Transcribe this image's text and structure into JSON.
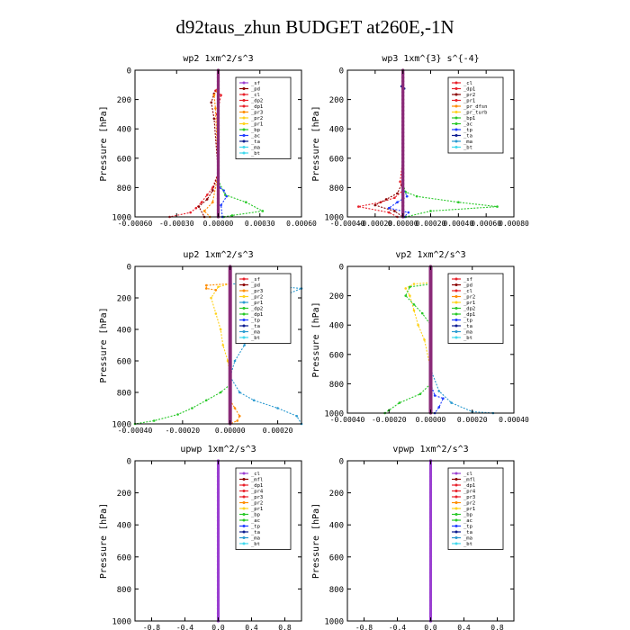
{
  "page_title": "d92taus_zhun  BUDGET at260E,-1N",
  "colors": {
    "purple": "#9a3fd1",
    "darkred": "#8b0000",
    "red": "#e8202a",
    "orange": "#ff8c00",
    "yellow": "#ffd21a",
    "green": "#28c828",
    "blue": "#1e3cff",
    "darkblue": "#0b1b8f",
    "teal": "#2a9ad0",
    "cyan": "#3fd8ec",
    "thick": "#8a2a78"
  },
  "chart_data": [
    {
      "type": "line",
      "title": "wp2  1xm^2/s^3",
      "ylabel": "Pressure [hPa]",
      "xlim": [
        -0.0006,
        0.0006
      ],
      "xticks": [
        -0.0006,
        -0.0003,
        0.0,
        0.0003,
        0.0006
      ],
      "xticklabels": [
        "-0.00060",
        "-0.00030",
        "0.00000",
        "0.00030",
        "0.00060"
      ],
      "ylim": [
        1000,
        0
      ],
      "yticks": [
        0,
        200,
        400,
        600,
        800,
        1000
      ],
      "legend": [
        "_sf",
        "_pd",
        "_cl",
        "_dp2",
        "_dp1",
        "_pr3",
        "_pr2",
        "_pr1",
        "_bp",
        "_ac",
        "_ta",
        "_ma",
        "_bt"
      ],
      "legend_colors": [
        "purple",
        "darkred",
        "red",
        "red",
        "red",
        "orange",
        "yellow",
        "yellow",
        "green",
        "blue",
        "darkblue",
        "cyan",
        "cyan"
      ],
      "series": [
        {
          "color": "red",
          "x": [
            0,
            -2e-05,
            2e-05,
            -1e-05,
            0,
            -4e-05,
            -8e-05,
            -0.00012,
            -0.00016,
            -0.0002,
            -0.00035
          ],
          "y": [
            110,
            140,
            170,
            300,
            700,
            800,
            850,
            900,
            940,
            970,
            1000
          ]
        },
        {
          "color": "darkred",
          "x": [
            0,
            -3e-05,
            -5e-05,
            -3e-05,
            0,
            -4e-05,
            -8e-05,
            -0.00014,
            -0.0001
          ],
          "y": [
            120,
            160,
            220,
            330,
            700,
            820,
            880,
            930,
            1000
          ]
        },
        {
          "color": "orange",
          "x": [
            0,
            -3e-05,
            -2e-05,
            0,
            -4e-05,
            -0.0001,
            -6e-05
          ],
          "y": [
            120,
            170,
            260,
            700,
            900,
            960,
            1000
          ]
        },
        {
          "color": "green",
          "x": [
            0,
            5e-05,
            0.0002,
            0.00032,
            0.0001,
            4e-05
          ],
          "y": [
            750,
            850,
            900,
            960,
            990,
            1000
          ]
        },
        {
          "color": "blue",
          "x": [
            0,
            1e-05,
            4e-05,
            6e-05,
            2e-05,
            3e-05
          ],
          "y": [
            700,
            800,
            820,
            860,
            920,
            1000
          ]
        },
        {
          "color": "thick",
          "x": [
            0,
            0
          ],
          "y": [
            0,
            1000
          ],
          "w": 3.2
        }
      ]
    },
    {
      "type": "line",
      "title": "wp3  1xm^{3} s^{-4}",
      "ylabel": "Pressure [hPa]",
      "xlim": [
        -0.0004,
        0.0008
      ],
      "xticks": [
        -0.0004,
        -0.0002,
        0.0,
        0.0002,
        0.0004,
        0.0006,
        0.0008
      ],
      "xticklabels": [
        "-0.00040",
        "-0.00020",
        "0.00000",
        "0.00020",
        "0.00040",
        "0.00060",
        "0.00080"
      ],
      "ylim": [
        1000,
        0
      ],
      "yticks": [
        0,
        200,
        400,
        600,
        800,
        1000
      ],
      "legend": [
        "_cl",
        "_dp1",
        "_pr2",
        "_pr1",
        "_pr_dfsn",
        "_pr_turb",
        "_bp1",
        "_ac",
        "_tp",
        "_ta",
        "_ma",
        "_bt"
      ],
      "legend_colors": [
        "red",
        "red",
        "darkred",
        "red",
        "orange",
        "yellow",
        "green",
        "green",
        "blue",
        "darkblue",
        "teal",
        "cyan"
      ],
      "series": [
        {
          "color": "red",
          "x": [
            0,
            -2e-05,
            0,
            -6e-05,
            -0.00016,
            -0.00032,
            -0.0001,
            -4e-05
          ],
          "y": [
            600,
            760,
            820,
            870,
            900,
            930,
            970,
            1000
          ]
        },
        {
          "color": "darkred",
          "x": [
            0,
            -4e-05,
            -0.00012,
            -0.0002,
            -6e-05,
            0
          ],
          "y": [
            760,
            840,
            880,
            920,
            960,
            1000
          ]
        },
        {
          "color": "green",
          "x": [
            0,
            2e-05,
            0.0001,
            0.0004,
            0.00068,
            0.0002,
            2e-05
          ],
          "y": [
            780,
            830,
            860,
            900,
            930,
            960,
            1000
          ]
        },
        {
          "color": "blue",
          "x": [
            0,
            3e-05,
            -4e-05,
            -0.0001,
            4e-05,
            1e-05
          ],
          "y": [
            800,
            860,
            900,
            940,
            970,
            1000
          ]
        },
        {
          "color": "darkblue",
          "x": [
            -1e-05,
            1e-05,
            0
          ],
          "y": [
            110,
            125,
            140
          ]
        },
        {
          "color": "thick",
          "x": [
            0,
            0
          ],
          "y": [
            0,
            1000
          ],
          "w": 3.2
        }
      ]
    },
    {
      "type": "line",
      "title": "up2  1xm^2/s^3",
      "ylabel": "Pressure [hPa]",
      "xlim": [
        -0.0004,
        0.0003
      ],
      "xticks": [
        -0.0004,
        -0.0002,
        0.0,
        0.0002
      ],
      "xticklabels": [
        "-0.00040",
        "-0.00020",
        "0.00000",
        "0.00020"
      ],
      "ylim": [
        1000,
        0
      ],
      "yticks": [
        0,
        200,
        400,
        600,
        800,
        1000
      ],
      "legend": [
        "_sf",
        "_pd",
        "_pr3",
        "_pr2",
        "_pr1",
        "_dp2",
        "_dp1",
        "_tp",
        "_ta",
        "_ma",
        "_bt"
      ],
      "legend_colors": [
        "red",
        "darkred",
        "orange",
        "yellow",
        "teal",
        "green",
        "green",
        "blue",
        "darkblue",
        "teal",
        "cyan"
      ],
      "series": [
        {
          "color": "yellow",
          "x": [
            0,
            -5e-05,
            -8e-05,
            -6e-05,
            -4e-05,
            -3e-05,
            -1e-05,
            0
          ],
          "y": [
            110,
            130,
            200,
            300,
            400,
            500,
            600,
            700
          ]
        },
        {
          "color": "orange",
          "x": [
            0,
            -0.0001,
            -0.0001,
            -6e-05
          ],
          "y": [
            110,
            120,
            140,
            150
          ]
        },
        {
          "color": "teal",
          "x": [
            0,
            0.0001,
            0.0003,
            0.0002,
            0.00012,
            8e-05,
            6e-05,
            2e-05,
            0
          ],
          "y": [
            110,
            115,
            140,
            200,
            300,
            400,
            500,
            600,
            700
          ]
        },
        {
          "color": "green",
          "x": [
            0,
            -4e-05,
            -0.0001,
            -0.00016,
            -0.00022,
            -0.00032,
            -0.0004
          ],
          "y": [
            750,
            800,
            850,
            900,
            940,
            980,
            1000
          ]
        },
        {
          "color": "teal",
          "x": [
            0,
            4e-05,
            0.0001,
            0.0002,
            0.00028,
            0.0003
          ],
          "y": [
            700,
            800,
            850,
            900,
            950,
            1000
          ]
        },
        {
          "color": "orange",
          "x": [
            0,
            2e-05,
            4e-05,
            3e-05,
            0
          ],
          "y": [
            850,
            900,
            950,
            980,
            1000
          ]
        },
        {
          "color": "thick",
          "x": [
            0,
            0
          ],
          "y": [
            0,
            1000
          ],
          "w": 4
        }
      ]
    },
    {
      "type": "line",
      "title": "vp2  1xm^2/s^3",
      "ylabel": "Pressure [hPa]",
      "xlim": [
        -0.0004,
        0.0004
      ],
      "xticks": [
        -0.0004,
        -0.0002,
        0.0,
        0.0002,
        0.0004
      ],
      "xticklabels": [
        "-0.00040",
        "-0.00020",
        "0.00000",
        "0.00020",
        "0.00040"
      ],
      "ylim": [
        1000,
        0
      ],
      "yticks": [
        0,
        200,
        400,
        600,
        800,
        1000
      ],
      "legend": [
        "_sf",
        "_pd",
        "_cl",
        "_pr2",
        "_pr1",
        "_dp2",
        "_dp1",
        "_tp",
        "_ta",
        "_ma",
        "_bt"
      ],
      "legend_colors": [
        "red",
        "darkred",
        "red",
        "orange",
        "yellow",
        "green",
        "green",
        "blue",
        "darkblue",
        "teal",
        "cyan"
      ],
      "series": [
        {
          "color": "yellow",
          "x": [
            0,
            -8e-05,
            -0.00012,
            -0.0001,
            -8e-05,
            -6e-05,
            -3e-05,
            0
          ],
          "y": [
            110,
            120,
            150,
            200,
            300,
            400,
            500,
            700
          ]
        },
        {
          "color": "green",
          "x": [
            0,
            -0.0001,
            -0.00012,
            -8e-05,
            -4e-05,
            0
          ],
          "y": [
            120,
            140,
            200,
            260,
            320,
            400
          ]
        },
        {
          "color": "green",
          "x": [
            0,
            -5e-05,
            -0.00015,
            -0.0002,
            -0.00022
          ],
          "y": [
            800,
            870,
            930,
            980,
            1000
          ]
        },
        {
          "color": "teal",
          "x": [
            0,
            4e-05,
            0.0001,
            0.0002,
            0.0003
          ],
          "y": [
            700,
            850,
            930,
            990,
            1000
          ]
        },
        {
          "color": "blue",
          "x": [
            0,
            2e-05,
            6e-05,
            4e-05,
            2e-05
          ],
          "y": [
            800,
            880,
            900,
            960,
            1000
          ]
        },
        {
          "color": "thick",
          "x": [
            0,
            0
          ],
          "y": [
            0,
            1000
          ],
          "w": 4
        }
      ]
    },
    {
      "type": "line",
      "title": "upwp  1xm^2/s^3",
      "ylabel": "Pressure [hPa]",
      "xlim": [
        -1.0,
        1.0
      ],
      "xticks": [
        -0.8,
        -0.4,
        0.0,
        0.4,
        0.8
      ],
      "xticklabels": [
        "-0.8",
        "-0.4",
        "0.0",
        "0.4",
        "0.8"
      ],
      "ylim": [
        1000,
        0
      ],
      "yticks": [
        0,
        200,
        400,
        600,
        800,
        1000
      ],
      "legend": [
        "_cl",
        "_mfl",
        "_dp1",
        "_pr4",
        "_pr3",
        "_pr2",
        "_pr1",
        "_bp",
        "_ac",
        "_tp",
        "_ta",
        "_ma",
        "_bt"
      ],
      "legend_colors": [
        "purple",
        "darkred",
        "red",
        "red",
        "red",
        "orange",
        "yellow",
        "green",
        "green",
        "blue",
        "darkblue",
        "teal",
        "cyan"
      ],
      "series": [
        {
          "color": "purple",
          "x": [
            0,
            0
          ],
          "y": [
            0,
            1000
          ],
          "w": 3
        }
      ]
    },
    {
      "type": "line",
      "title": "vpwp  1xm^2/s^3",
      "ylabel": "Pressure [hPa]",
      "xlim": [
        -1.0,
        1.0
      ],
      "xticks": [
        -0.8,
        -0.4,
        0.0,
        0.4,
        0.8
      ],
      "xticklabels": [
        "-0.8",
        "-0.4",
        "0.0",
        "0.4",
        "0.8"
      ],
      "ylim": [
        1000,
        0
      ],
      "yticks": [
        0,
        200,
        400,
        600,
        800,
        1000
      ],
      "legend": [
        "_cl",
        "_mfl",
        "_dp1",
        "_pr4",
        "_pr3",
        "_pr2",
        "_pr1",
        "_bp",
        "_ac",
        "_tp",
        "_ta",
        "_ma",
        "_bt"
      ],
      "legend_colors": [
        "purple",
        "darkred",
        "red",
        "red",
        "red",
        "orange",
        "yellow",
        "green",
        "green",
        "blue",
        "darkblue",
        "teal",
        "cyan"
      ],
      "series": [
        {
          "color": "purple",
          "x": [
            0,
            0
          ],
          "y": [
            0,
            1000
          ],
          "w": 3
        }
      ]
    }
  ]
}
